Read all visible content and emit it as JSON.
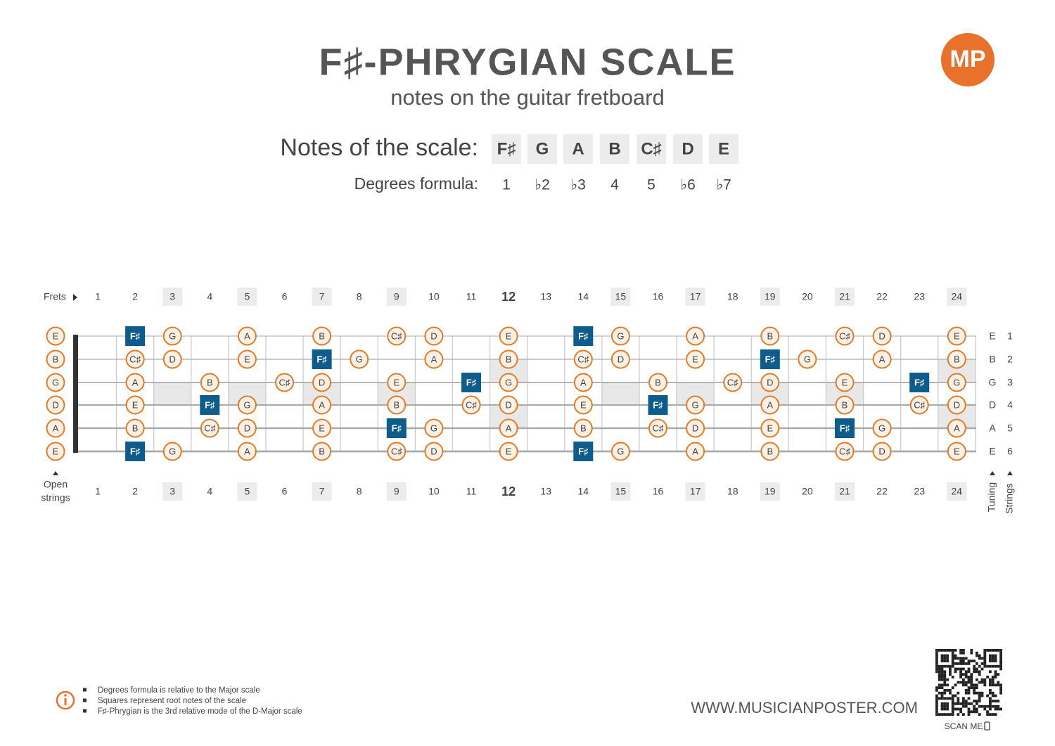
{
  "header": {
    "title": "F♯-PHRYGIAN SCALE",
    "subtitle": "notes on the guitar fretboard",
    "logo": "MP"
  },
  "scale": {
    "notes_label": "Notes of the scale:",
    "notes": [
      "F♯",
      "G",
      "A",
      "B",
      "C♯",
      "D",
      "E"
    ],
    "degrees_label": "Degrees formula:",
    "degrees": [
      "1",
      "♭2",
      "♭3",
      "4",
      "5",
      "♭6",
      "♭7"
    ]
  },
  "fretboard": {
    "frets_label": "Frets",
    "fret_numbers": [
      1,
      2,
      3,
      4,
      5,
      6,
      7,
      8,
      9,
      10,
      11,
      12,
      13,
      14,
      15,
      16,
      17,
      18,
      19,
      20,
      21,
      22,
      23,
      24
    ],
    "highlighted_frets": [
      3,
      5,
      7,
      9,
      15,
      17,
      19,
      21,
      24
    ],
    "bold_fret": 12,
    "single_inlays": [
      3,
      5,
      7,
      9,
      15,
      17,
      19,
      21
    ],
    "double_inlays": [
      12,
      24
    ],
    "root": "F♯",
    "open_strings_label": [
      "Open",
      "strings"
    ],
    "tuning_label": "Tuning",
    "strings_label": "Strings",
    "strings": [
      {
        "tuning": "E",
        "number": "1",
        "open": "E",
        "frets": [
          null,
          "F♯",
          "G",
          null,
          "A",
          null,
          "B",
          null,
          "C♯",
          "D",
          null,
          "E",
          null,
          "F♯",
          "G",
          null,
          "A",
          null,
          "B",
          null,
          "C♯",
          "D",
          null,
          "E"
        ]
      },
      {
        "tuning": "B",
        "number": "2",
        "open": "B",
        "frets": [
          null,
          "C♯",
          "D",
          null,
          "E",
          null,
          "F♯",
          "G",
          null,
          "A",
          null,
          "B",
          null,
          "C♯",
          "D",
          null,
          "E",
          null,
          "F♯",
          "G",
          null,
          "A",
          null,
          "B"
        ]
      },
      {
        "tuning": "G",
        "number": "3",
        "open": "G",
        "frets": [
          null,
          "A",
          null,
          "B",
          null,
          "C♯",
          "D",
          null,
          "E",
          null,
          "F♯",
          "G",
          null,
          "A",
          null,
          "B",
          null,
          "C♯",
          "D",
          null,
          "E",
          null,
          "F♯",
          "G"
        ]
      },
      {
        "tuning": "D",
        "number": "4",
        "open": "D",
        "frets": [
          null,
          "E",
          null,
          "F♯",
          "G",
          null,
          "A",
          null,
          "B",
          null,
          "C♯",
          "D",
          null,
          "E",
          null,
          "F♯",
          "G",
          null,
          "A",
          null,
          "B",
          null,
          "C♯",
          "D"
        ]
      },
      {
        "tuning": "A",
        "number": "5",
        "open": "A",
        "frets": [
          null,
          "B",
          null,
          "C♯",
          "D",
          null,
          "E",
          null,
          "F♯",
          "G",
          null,
          "A",
          null,
          "B",
          null,
          "C♯",
          "D",
          null,
          "E",
          null,
          "F♯",
          "G",
          null,
          "A"
        ]
      },
      {
        "tuning": "E",
        "number": "6",
        "open": "E",
        "frets": [
          null,
          "F♯",
          "G",
          null,
          "A",
          null,
          "B",
          null,
          "C♯",
          "D",
          null,
          "E",
          null,
          "F♯",
          "G",
          null,
          "A",
          null,
          "B",
          null,
          "C♯",
          "D",
          null,
          "E"
        ]
      }
    ]
  },
  "footer": {
    "notes": [
      "Degrees formula is relative to the Major scale",
      "Squares represent root notes of the scale",
      "F♯-Phrygian is the 3rd relative mode of the D-Major scale"
    ],
    "website": "WWW.MUSICIANPOSTER.COM",
    "scan": "SCAN ME"
  }
}
